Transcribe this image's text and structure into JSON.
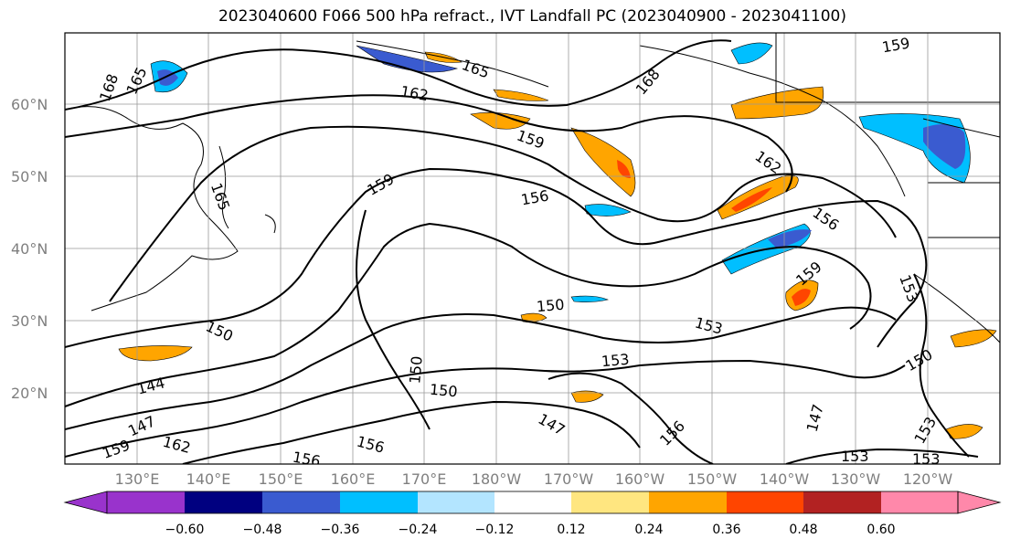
{
  "title": "2023040600 F066 500 hPa refract., IVT Landfall PC (2023040900 - 2023041100)",
  "lat_labels": [
    "60°N",
    "50°N",
    "40°N",
    "30°N",
    "20°N"
  ],
  "lon_labels": [
    "130°E",
    "140°E",
    "150°E",
    "160°E",
    "170°E",
    "180°W",
    "170°W",
    "160°W",
    "150°W",
    "140°W",
    "130°W",
    "120°W"
  ],
  "contour_labels": [
    "168",
    "165",
    "165",
    "162",
    "168",
    "159",
    "159",
    "159",
    "162",
    "156",
    "156",
    "159",
    "153",
    "150",
    "150",
    "153",
    "153",
    "150",
    "144",
    "147",
    "159",
    "162",
    "156",
    "156",
    "150",
    "147",
    "147",
    "156",
    "153",
    "153",
    "153",
    "150",
    "165"
  ],
  "colorbar": {
    "ticks": [
      "−0.60",
      "−0.48",
      "−0.36",
      "−0.24",
      "−0.12",
      "0.12",
      "0.24",
      "0.36",
      "0.48",
      "0.60"
    ],
    "colors": [
      "#9933cc",
      "#000080",
      "#3a5bd0",
      "#00bfff",
      "#b3e5ff",
      "#ffffff",
      "#ffe680",
      "#ffa500",
      "#ff4500",
      "#b22222",
      "#ff88aa"
    ]
  }
}
